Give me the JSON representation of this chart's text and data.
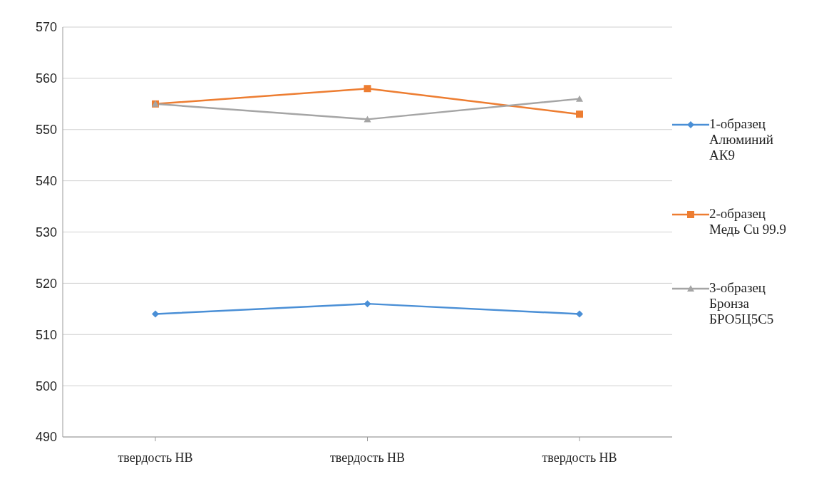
{
  "chart_data": {
    "type": "line",
    "categories": [
      "твердость НВ",
      "твердость НВ",
      "твердость НВ"
    ],
    "series": [
      {
        "name": "1-образец Алюминий АК9",
        "color": "#4a8fd6",
        "marker": "diamond",
        "values": [
          514,
          516,
          514
        ]
      },
      {
        "name": "2-образец Медь Cu 99.9",
        "color": "#ed7d31",
        "marker": "square",
        "values": [
          555,
          558,
          553
        ]
      },
      {
        "name": "3-образец Бронза БРО5Ц5С5",
        "color": "#a5a5a5",
        "marker": "triangle",
        "values": [
          555,
          552,
          556
        ]
      }
    ],
    "ylim": [
      490,
      570
    ],
    "yticks": [
      490,
      500,
      510,
      520,
      530,
      540,
      550,
      560,
      570
    ],
    "grid": "y",
    "legend": "right"
  }
}
